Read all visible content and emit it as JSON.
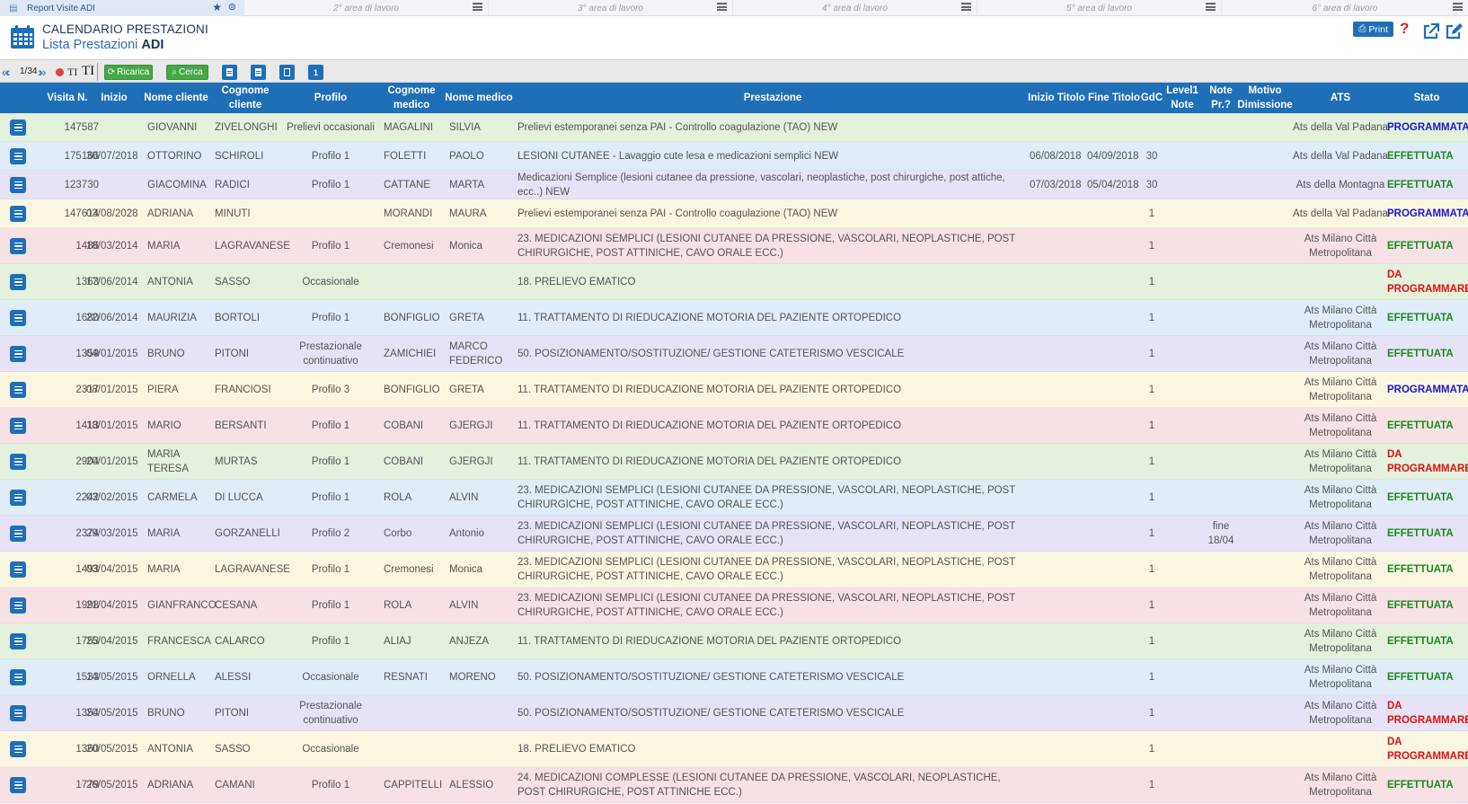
{
  "workareas": [
    {
      "label": "Report Visite ADI",
      "active": true
    },
    {
      "label": "2° area di lavoro"
    },
    {
      "label": "3° area di lavoro"
    },
    {
      "label": "4° area di lavoro"
    },
    {
      "label": "5° area di lavoro"
    },
    {
      "label": "6° area di lavoro"
    }
  ],
  "header": {
    "title": "CALENDARIO PRESTAZIONI",
    "subtitle_prefix": "Lista Prestazioni",
    "subtitle_bold": "ADI",
    "print_label": "Print"
  },
  "toolbar": {
    "page_indicator": "1/34",
    "t1": "TI",
    "t2": "TI",
    "reload_label": "Ricarica",
    "search_label": "Cerca",
    "num_icon_label": "1"
  },
  "columns": [
    "Visita N.",
    "Inizio",
    "Nome cliente",
    "Cognome cliente",
    "Profilo",
    "Cognome medico",
    "Nome medico",
    "Prestazione",
    "Inizio Titolo",
    "Fine Titolo",
    "GdC",
    "Level1 Note",
    "Note Pr.?",
    "Motivo Dimissione",
    "ATS",
    "Stato"
  ],
  "colors": {
    "header_bg": "#1f6fb8",
    "row_colors": [
      "#e3f1dd",
      "#e0ecf8",
      "#e6e3f6",
      "#fbf6e1",
      "#f6e1e5"
    ],
    "stato_programmata": "#1a1acc",
    "stato_effettuata": "#1b8a1b",
    "stato_da_programmare": "#e01010"
  },
  "rows": [
    {
      "visita": "147587",
      "inizio": "",
      "nome": "GIOVANNI",
      "cognome": "ZIVELONGHI",
      "profilo": "Prelievi occasionali",
      "cmedico": "MAGALINI",
      "nmedico": "SILVIA",
      "prestazione": "Prelievi estemporanei senza PAI - Controllo coagulazione (TAO) NEW",
      "initit": "",
      "fintit": "",
      "gdc": "",
      "l1note": "",
      "notepr": "",
      "motivo": "",
      "ats": "Ats della Val Padana",
      "stato": "PROGRAMMATA",
      "stato_type": "programmata"
    },
    {
      "visita": "175166",
      "inizio": "30/07/2018",
      "nome": "OTTORINO",
      "cognome": "SCHIROLI",
      "profilo": "Profilo 1",
      "cmedico": "FOLETTI",
      "nmedico": "PAOLO",
      "prestazione": "LESIONI CUTANEE - Lavaggio cute lesa e medicazioni semplici NEW",
      "initit": "06/08/2018",
      "fintit": "04/09/2018",
      "gdc": "30",
      "l1note": "",
      "notepr": "",
      "motivo": "",
      "ats": "Ats della Val Padana",
      "stato": "EFFETTUATA",
      "stato_type": "effettuata"
    },
    {
      "visita": "123730",
      "inizio": "",
      "nome": "GIACOMINA",
      "cognome": "RADICI",
      "profilo": "Profilo 1",
      "cmedico": "CATTANE",
      "nmedico": "MARTA",
      "prestazione": "Medicazioni Semplice (lesioni cutanee da pressione, vascolari, neoplastiche, post chirurgiche, post attiche, ecc..) NEW",
      "initit": "07/03/2018",
      "fintit": "05/04/2018",
      "gdc": "30",
      "l1note": "",
      "notepr": "",
      "motivo": "",
      "ats": "Ats della Montagna",
      "stato": "EFFETTUATA",
      "stato_type": "effettuata"
    },
    {
      "visita": "147614",
      "inizio": "03/08/2028",
      "nome": "ADRIANA",
      "cognome": "MINUTI",
      "profilo": "",
      "cmedico": "MORANDI",
      "nmedico": "MAURA",
      "prestazione": "Prelievi estemporanei senza PAI - Controllo coagulazione (TAO) NEW",
      "initit": "",
      "fintit": "",
      "gdc": "1",
      "l1note": "",
      "notepr": "",
      "motivo": "",
      "ats": "Ats della Val Padana",
      "stato": "PROGRAMMATA",
      "stato_type": "programmata"
    },
    {
      "visita": "1486",
      "inizio": "18/03/2014",
      "nome": "MARIA",
      "cognome": "LAGRAVANESE",
      "profilo": "Profilo 1",
      "cmedico": "Cremonesi",
      "nmedico": "Monica",
      "prestazione": "23. MEDICAZIONI SEMPLICI (LESIONI CUTANEE DA PRESSIONE, VASCOLARI, NEOPLASTICHE, POST CHIRURGICHE, POST ATTINICHE, CAVO ORALE ECC.)",
      "initit": "",
      "fintit": "",
      "gdc": "1",
      "l1note": "",
      "notepr": "",
      "motivo": "",
      "ats": "Ats Milano Città Metropolitana",
      "stato": "EFFETTUATA",
      "stato_type": "effettuata"
    },
    {
      "visita": "1363",
      "inizio": "17/06/2014",
      "nome": "ANTONIA",
      "cognome": "SASSO",
      "profilo": "Occasionale",
      "cmedico": "",
      "nmedico": "",
      "prestazione": "18. PRELIEVO EMATICO",
      "initit": "",
      "fintit": "",
      "gdc": "1",
      "l1note": "",
      "notepr": "",
      "motivo": "",
      "ats": "",
      "stato": "DA PROGRAMMARE",
      "stato_type": "da_programmare"
    },
    {
      "visita": "1680",
      "inizio": "22/06/2014",
      "nome": "MAURIZIA",
      "cognome": "BORTOLI",
      "profilo": "Profilo 1",
      "cmedico": "BONFIGLIO",
      "nmedico": "GRETA",
      "prestazione": "11. TRATTAMENTO DI RIEDUCAZIONE MOTORIA DEL PAZIENTE ORTOPEDICO",
      "initit": "",
      "fintit": "",
      "gdc": "1",
      "l1note": "",
      "notepr": "",
      "motivo": "",
      "ats": "Ats Milano Città Metropolitana",
      "stato": "EFFETTUATA",
      "stato_type": "effettuata"
    },
    {
      "visita": "1359",
      "inizio": "04/01/2015",
      "nome": "BRUNO",
      "cognome": "PITONI",
      "profilo": "Prestazionale continuativo",
      "cmedico": "ZAMICHIEI",
      "nmedico": "MARCO FEDERICO",
      "prestazione": "50. POSIZIONAMENTO/SOSTITUZIONE/ GESTIONE CATETERISMO VESCICALE",
      "initit": "",
      "fintit": "",
      "gdc": "1",
      "l1note": "",
      "notepr": "",
      "motivo": "",
      "ats": "Ats Milano Città Metropolitana",
      "stato": "EFFETTUATA",
      "stato_type": "effettuata"
    },
    {
      "visita": "2317",
      "inizio": "08/01/2015",
      "nome": "PIERA",
      "cognome": "FRANCIOSI",
      "profilo": "Profilo 3",
      "cmedico": "BONFIGLIO",
      "nmedico": "GRETA",
      "prestazione": "11. TRATTAMENTO DI RIEDUCAZIONE MOTORIA DEL PAZIENTE ORTOPEDICO",
      "initit": "",
      "fintit": "",
      "gdc": "1",
      "l1note": "",
      "notepr": "",
      "motivo": "",
      "ats": "Ats Milano Città Metropolitana",
      "stato": "PROGRAMMATA",
      "stato_type": "programmata"
    },
    {
      "visita": "1413",
      "inizio": "18/01/2015",
      "nome": "MARIO",
      "cognome": "BERSANTI",
      "profilo": "Profilo 1",
      "cmedico": "COBANI",
      "nmedico": "GJERGJI",
      "prestazione": "11. TRATTAMENTO DI RIEDUCAZIONE MOTORIA DEL PAZIENTE ORTOPEDICO",
      "initit": "",
      "fintit": "",
      "gdc": "1",
      "l1note": "",
      "notepr": "",
      "motivo": "",
      "ats": "Ats Milano Città Metropolitana",
      "stato": "EFFETTUATA",
      "stato_type": "effettuata"
    },
    {
      "visita": "2904",
      "inizio": "20/01/2015",
      "nome": "MARIA TERESA",
      "cognome": "MURTAS",
      "profilo": "Profilo 1",
      "cmedico": "COBANI",
      "nmedico": "GJERGJI",
      "prestazione": "11. TRATTAMENTO DI RIEDUCAZIONE MOTORIA DEL PAZIENTE ORTOPEDICO",
      "initit": "",
      "fintit": "",
      "gdc": "1",
      "l1note": "",
      "notepr": "",
      "motivo": "",
      "ats": "Ats Milano Città Metropolitana",
      "stato": "DA PROGRAMMARE",
      "stato_type": "da_programmare"
    },
    {
      "visita": "2242",
      "inizio": "03/02/2015",
      "nome": "CARMELA",
      "cognome": "DI LUCCA",
      "profilo": "Profilo 1",
      "cmedico": "ROLA",
      "nmedico": "ALVIN",
      "prestazione": "23. MEDICAZIONI SEMPLICI (LESIONI CUTANEE DA PRESSIONE, VASCOLARI, NEOPLASTICHE, POST CHIRURGICHE, POST ATTINICHE, CAVO ORALE ECC.)",
      "initit": "",
      "fintit": "",
      "gdc": "1",
      "l1note": "",
      "notepr": "",
      "motivo": "",
      "ats": "Ats Milano Città Metropolitana",
      "stato": "EFFETTUATA",
      "stato_type": "effettuata"
    },
    {
      "visita": "2374",
      "inizio": "29/03/2015",
      "nome": "MARIA",
      "cognome": "GORZANELLI",
      "profilo": "Profilo 2",
      "cmedico": "Corbo",
      "nmedico": "Antonio",
      "prestazione": "23. MEDICAZIONI SEMPLICI (LESIONI CUTANEE DA PRESSIONE, VASCOLARI, NEOPLASTICHE, POST CHIRURGICHE, POST ATTINICHE, CAVO ORALE ECC.)",
      "initit": "",
      "fintit": "",
      "gdc": "1",
      "l1note": "",
      "notepr": "fine 18/04",
      "motivo": "",
      "ats": "Ats Milano Città Metropolitana",
      "stato": "EFFETTUATA",
      "stato_type": "effettuata"
    },
    {
      "visita": "1493",
      "inizio": "03/04/2015",
      "nome": "MARIA",
      "cognome": "LAGRAVANESE",
      "profilo": "Profilo 1",
      "cmedico": "Cremonesi",
      "nmedico": "Monica",
      "prestazione": "23. MEDICAZIONI SEMPLICI (LESIONI CUTANEE DA PRESSIONE, VASCOLARI, NEOPLASTICHE, POST CHIRURGICHE, POST ATTINICHE, CAVO ORALE ECC.)",
      "initit": "",
      "fintit": "",
      "gdc": "1",
      "l1note": "",
      "notepr": "",
      "motivo": "",
      "ats": "Ats Milano Città Metropolitana",
      "stato": "EFFETTUATA",
      "stato_type": "effettuata"
    },
    {
      "visita": "1998",
      "inizio": "21/04/2015",
      "nome": "GIANFRANCO",
      "cognome": "CESANA",
      "profilo": "Profilo 1",
      "cmedico": "ROLA",
      "nmedico": "ALVIN",
      "prestazione": "23. MEDICAZIONI SEMPLICI (LESIONI CUTANEE DA PRESSIONE, VASCOLARI, NEOPLASTICHE, POST CHIRURGICHE, POST ATTINICHE, CAVO ORALE ECC.)",
      "initit": "",
      "fintit": "",
      "gdc": "1",
      "l1note": "",
      "notepr": "",
      "motivo": "",
      "ats": "Ats Milano Città Metropolitana",
      "stato": "EFFETTUATA",
      "stato_type": "effettuata"
    },
    {
      "visita": "1753",
      "inizio": "25/04/2015",
      "nome": "FRANCESCA",
      "cognome": "CALARCO",
      "profilo": "Profilo 1",
      "cmedico": "ALIAJ",
      "nmedico": "ANJEZA",
      "prestazione": "11. TRATTAMENTO DI RIEDUCAZIONE MOTORIA DEL PAZIENTE ORTOPEDICO",
      "initit": "",
      "fintit": "",
      "gdc": "1",
      "l1note": "",
      "notepr": "",
      "motivo": "",
      "ats": "Ats Milano Città Metropolitana",
      "stato": "EFFETTUATA",
      "stato_type": "effettuata"
    },
    {
      "visita": "1533",
      "inizio": "14/05/2015",
      "nome": "ORNELLA",
      "cognome": "ALESSI",
      "profilo": "Occasionale",
      "cmedico": "RESNATI",
      "nmedico": "MORENO",
      "prestazione": "50. POSIZIONAMENTO/SOSTITUZIONE/ GESTIONE CATETERISMO VESCICALE",
      "initit": "",
      "fintit": "",
      "gdc": "1",
      "l1note": "",
      "notepr": "",
      "motivo": "",
      "ats": "Ats Milano Città Metropolitana",
      "stato": "EFFETTUATA",
      "stato_type": "effettuata"
    },
    {
      "visita": "1354",
      "inizio": "20/05/2015",
      "nome": "BRUNO",
      "cognome": "PITONI",
      "profilo": "Prestazionale continuativo",
      "cmedico": "",
      "nmedico": "",
      "prestazione": "50. POSIZIONAMENTO/SOSTITUZIONE/ GESTIONE CATETERISMO VESCICALE",
      "initit": "",
      "fintit": "",
      "gdc": "1",
      "l1note": "",
      "notepr": "",
      "motivo": "",
      "ats": "Ats Milano Città Metropolitana",
      "stato": "DA PROGRAMMARE",
      "stato_type": "da_programmare"
    },
    {
      "visita": "1360",
      "inizio": "20/05/2015",
      "nome": "ANTONIA",
      "cognome": "SASSO",
      "profilo": "Occasionale",
      "cmedico": "",
      "nmedico": "",
      "prestazione": "18. PRELIEVO EMATICO",
      "initit": "",
      "fintit": "",
      "gdc": "1",
      "l1note": "",
      "notepr": "",
      "motivo": "",
      "ats": "",
      "stato": "DA PROGRAMMARE",
      "stato_type": "da_programmare"
    },
    {
      "visita": "1779",
      "inizio": "26/05/2015",
      "nome": "ADRIANA",
      "cognome": "CAMANI",
      "profilo": "Profilo 1",
      "cmedico": "CAPPITELLI",
      "nmedico": "ALESSIO",
      "prestazione": "24. MEDICAZIONI COMPLESSE (LESIONI CUTANEE DA PRESSIONE, VASCOLARI, NEOPLASTICHE, POST CHIRURGICHE, POST ATTINICHE ECC.)",
      "initit": "",
      "fintit": "",
      "gdc": "1",
      "l1note": "",
      "notepr": "",
      "motivo": "",
      "ats": "Ats Milano Città Metropolitana",
      "stato": "EFFETTUATA",
      "stato_type": "effettuata"
    }
  ]
}
